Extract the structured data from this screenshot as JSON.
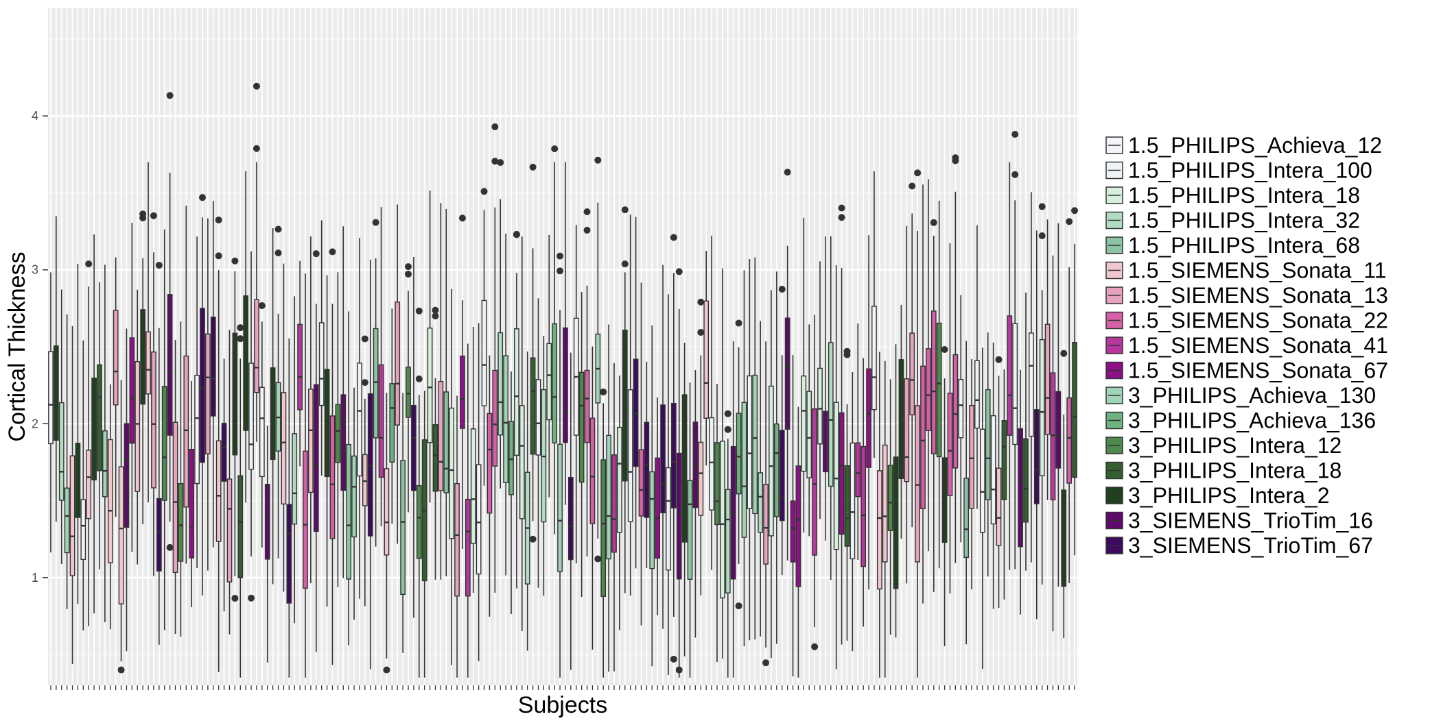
{
  "chart_data": {
    "type": "boxplot",
    "xlabel": "Subjects",
    "ylabel": "Cortical Thickness",
    "y_ticks": [
      1,
      2,
      3,
      4
    ],
    "ylim": [
      0.3,
      4.7
    ],
    "x_tick_labels_shown": false,
    "grid": true,
    "legend_position": "right",
    "n_subjects": 190,
    "series": [
      {
        "name": "1.5_PHILIPS_Achieva_12",
        "color": "#f7f4f9"
      },
      {
        "name": "1.5_PHILIPS_Intera_100",
        "color": "#eef4f6"
      },
      {
        "name": "1.5_PHILIPS_Intera_18",
        "color": "#d6eedc"
      },
      {
        "name": "1.5_PHILIPS_Intera_32",
        "color": "#b2dcc2"
      },
      {
        "name": "1.5_PHILIPS_Intera_68",
        "color": "#8cc4a3"
      },
      {
        "name": "1.5_SIEMENS_Sonata_11",
        "color": "#f2c6cd"
      },
      {
        "name": "1.5_SIEMENS_Sonata_13",
        "color": "#e6a3bd"
      },
      {
        "name": "1.5_SIEMENS_Sonata_22",
        "color": "#d660a8"
      },
      {
        "name": "1.5_SIEMENS_Sonata_41",
        "color": "#b8379f"
      },
      {
        "name": "1.5_SIEMENS_Sonata_67",
        "color": "#8e0f86"
      },
      {
        "name": "3_PHILIPS_Achieva_130",
        "color": "#a1d4b6"
      },
      {
        "name": "3_PHILIPS_Achieva_136",
        "color": "#6fb17f"
      },
      {
        "name": "3_PHILIPS_Intera_12",
        "color": "#4e8a4b"
      },
      {
        "name": "3_PHILIPS_Intera_18",
        "color": "#33602f"
      },
      {
        "name": "3_PHILIPS_Intera_2",
        "color": "#21401f"
      },
      {
        "name": "3_SIEMENS_TrioTim_16",
        "color": "#5e0a6a"
      },
      {
        "name": "3_SIEMENS_TrioTim_67",
        "color": "#3d0a5e"
      }
    ]
  }
}
